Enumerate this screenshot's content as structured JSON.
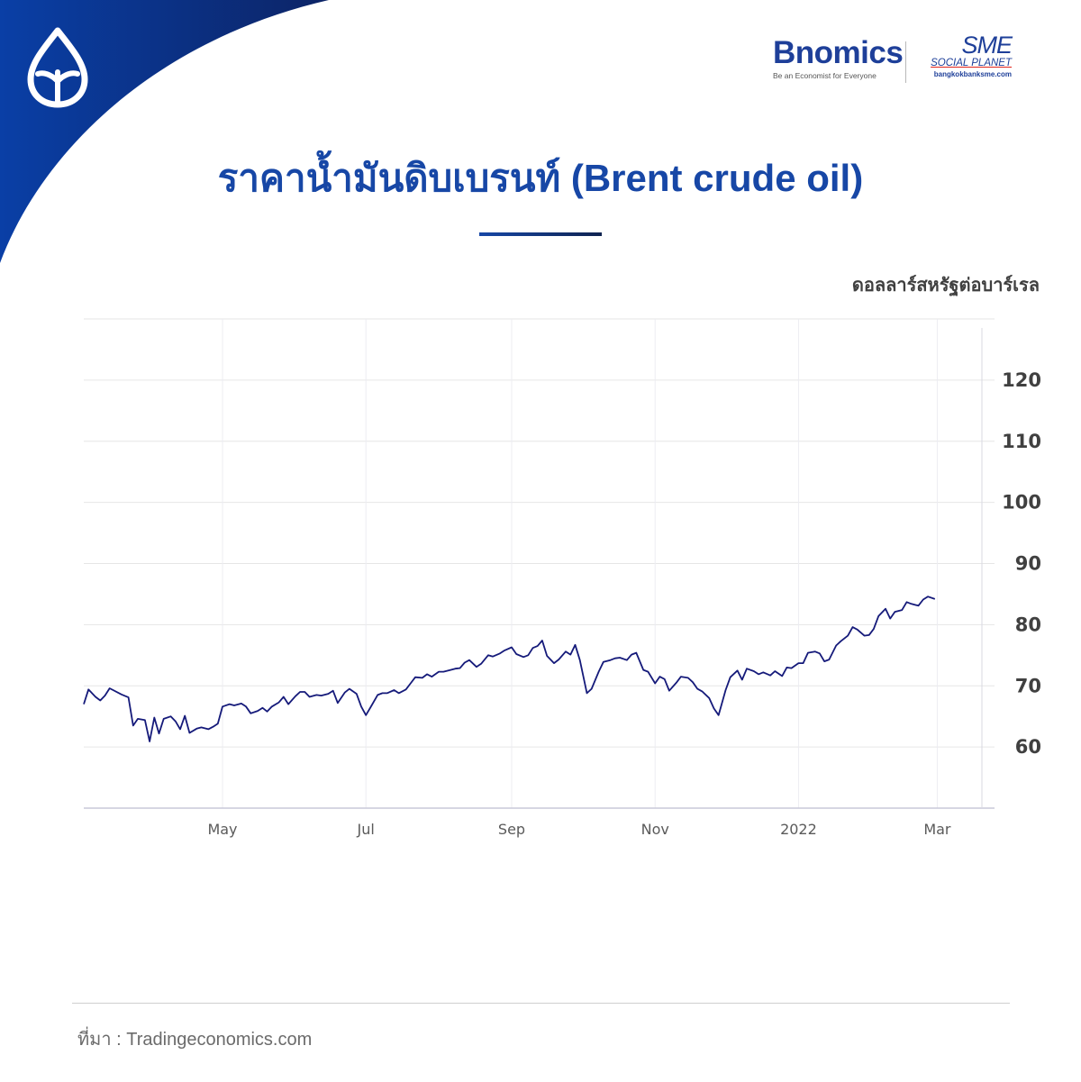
{
  "header": {
    "bnomics_logo": "Bnomics",
    "bnomics_tagline": "Be an Economist for Everyone",
    "sme_logo": "SME",
    "sme_subtitle": "SOCIAL PLANET",
    "sme_url": "bangkokbanksme.com"
  },
  "colors": {
    "brand_blue": "#1747a6",
    "line": "#151a7a",
    "corner_dark": "#0a2f7a"
  },
  "chart_data": {
    "type": "line",
    "title": "ราคาน้ำมันดิบเบรนท์ (Brent crude oil)",
    "ylabel": "ดอลลาร์สหรัฐต่อบาร์เรล",
    "xlabel": "",
    "ylim": [
      50,
      130
    ],
    "yticks": [
      60,
      70,
      80,
      90,
      100,
      110,
      120
    ],
    "xlim": [
      "2021-03-03",
      "2022-03-20"
    ],
    "xticks": [
      {
        "label": "May",
        "date": "2021-05-01"
      },
      {
        "label": "Jul",
        "date": "2021-07-01"
      },
      {
        "label": "Sep",
        "date": "2021-09-01"
      },
      {
        "label": "Nov",
        "date": "2021-11-01"
      },
      {
        "label": "2022",
        "date": "2022-01-01"
      },
      {
        "label": "Mar",
        "date": "2022-03-01"
      }
    ],
    "grid": true,
    "series": [
      {
        "points": [
          [
            "2021-03-03",
            67.0
          ],
          [
            "2021-03-05",
            69.4
          ],
          [
            "2021-03-08",
            68.2
          ],
          [
            "2021-03-10",
            67.6
          ],
          [
            "2021-03-12",
            68.4
          ],
          [
            "2021-03-14",
            69.6
          ],
          [
            "2021-03-19",
            68.6
          ],
          [
            "2021-03-22",
            68.1
          ],
          [
            "2021-03-24",
            63.5
          ],
          [
            "2021-03-26",
            64.6
          ],
          [
            "2021-03-29",
            64.4
          ],
          [
            "2021-03-31",
            60.9
          ],
          [
            "2021-04-02",
            64.8
          ],
          [
            "2021-04-04",
            62.2
          ],
          [
            "2021-04-06",
            64.6
          ],
          [
            "2021-04-09",
            65.0
          ],
          [
            "2021-04-11",
            64.2
          ],
          [
            "2021-04-13",
            62.9
          ],
          [
            "2021-04-15",
            65.1
          ],
          [
            "2021-04-17",
            62.3
          ],
          [
            "2021-04-20",
            63.0
          ],
          [
            "2021-04-22",
            63.2
          ],
          [
            "2021-04-25",
            62.9
          ],
          [
            "2021-04-27",
            63.3
          ],
          [
            "2021-04-29",
            63.8
          ],
          [
            "2021-05-01",
            66.6
          ],
          [
            "2021-05-04",
            67.0
          ],
          [
            "2021-05-06",
            66.8
          ],
          [
            "2021-05-09",
            67.1
          ],
          [
            "2021-05-11",
            66.6
          ],
          [
            "2021-05-13",
            65.5
          ],
          [
            "2021-05-16",
            65.9
          ],
          [
            "2021-05-18",
            66.4
          ],
          [
            "2021-05-20",
            65.8
          ],
          [
            "2021-05-22",
            66.6
          ],
          [
            "2021-05-25",
            67.3
          ],
          [
            "2021-05-27",
            68.2
          ],
          [
            "2021-05-29",
            67.0
          ],
          [
            "2021-06-01",
            68.3
          ],
          [
            "2021-06-03",
            69.0
          ],
          [
            "2021-06-05",
            69.0
          ],
          [
            "2021-06-07",
            68.2
          ],
          [
            "2021-06-10",
            68.5
          ],
          [
            "2021-06-12",
            68.4
          ],
          [
            "2021-06-15",
            68.7
          ],
          [
            "2021-06-17",
            69.2
          ],
          [
            "2021-06-19",
            67.2
          ],
          [
            "2021-06-22",
            68.9
          ],
          [
            "2021-06-24",
            69.5
          ],
          [
            "2021-06-27",
            68.7
          ],
          [
            "2021-06-29",
            66.6
          ],
          [
            "2021-07-01",
            65.2
          ],
          [
            "2021-07-03",
            66.5
          ],
          [
            "2021-07-06",
            68.5
          ],
          [
            "2021-07-08",
            68.8
          ],
          [
            "2021-07-10",
            68.8
          ],
          [
            "2021-07-13",
            69.3
          ],
          [
            "2021-07-15",
            68.8
          ],
          [
            "2021-07-18",
            69.4
          ],
          [
            "2021-07-20",
            70.4
          ],
          [
            "2021-07-22",
            71.4
          ],
          [
            "2021-07-25",
            71.3
          ],
          [
            "2021-07-27",
            71.9
          ],
          [
            "2021-07-29",
            71.5
          ],
          [
            "2021-08-01",
            72.3
          ],
          [
            "2021-08-03",
            72.3
          ],
          [
            "2021-08-06",
            72.6
          ],
          [
            "2021-08-08",
            72.8
          ],
          [
            "2021-08-10",
            72.9
          ],
          [
            "2021-08-12",
            73.8
          ],
          [
            "2021-08-14",
            74.2
          ],
          [
            "2021-08-17",
            73.1
          ],
          [
            "2021-08-19",
            73.6
          ],
          [
            "2021-08-22",
            75.0
          ],
          [
            "2021-08-24",
            74.8
          ],
          [
            "2021-08-27",
            75.3
          ],
          [
            "2021-08-29",
            75.8
          ],
          [
            "2021-09-01",
            76.3
          ],
          [
            "2021-09-03",
            75.2
          ],
          [
            "2021-09-06",
            74.7
          ],
          [
            "2021-09-08",
            75.0
          ],
          [
            "2021-09-10",
            76.2
          ],
          [
            "2021-09-12",
            76.5
          ],
          [
            "2021-09-14",
            77.4
          ],
          [
            "2021-09-16",
            74.9
          ],
          [
            "2021-09-19",
            73.7
          ],
          [
            "2021-09-21",
            74.3
          ],
          [
            "2021-09-24",
            75.6
          ],
          [
            "2021-09-26",
            75.1
          ],
          [
            "2021-09-28",
            76.7
          ],
          [
            "2021-09-30",
            74.2
          ],
          [
            "2021-10-03",
            68.8
          ],
          [
            "2021-10-05",
            69.5
          ],
          [
            "2021-10-08",
            72.3
          ],
          [
            "2021-10-10",
            73.9
          ],
          [
            "2021-10-13",
            74.2
          ],
          [
            "2021-10-15",
            74.5
          ],
          [
            "2021-10-17",
            74.6
          ],
          [
            "2021-10-20",
            74.2
          ],
          [
            "2021-10-22",
            75.1
          ],
          [
            "2021-10-24",
            75.4
          ],
          [
            "2021-10-27",
            72.6
          ],
          [
            "2021-10-29",
            72.3
          ],
          [
            "2021-11-01",
            70.4
          ],
          [
            "2021-11-03",
            71.5
          ],
          [
            "2021-11-05",
            71.1
          ],
          [
            "2021-11-07",
            69.2
          ],
          [
            "2021-11-10",
            70.5
          ],
          [
            "2021-11-12",
            71.5
          ],
          [
            "2021-11-15",
            71.3
          ],
          [
            "2021-11-17",
            70.6
          ],
          [
            "2021-11-19",
            69.5
          ],
          [
            "2021-11-21",
            69.1
          ],
          [
            "2021-11-24",
            68.0
          ],
          [
            "2021-11-26",
            66.3
          ],
          [
            "2021-11-28",
            65.2
          ],
          [
            "2021-12-01",
            69.3
          ],
          [
            "2021-12-03",
            71.4
          ],
          [
            "2021-12-06",
            72.5
          ],
          [
            "2021-12-08",
            71.0
          ],
          [
            "2021-12-10",
            72.8
          ],
          [
            "2021-12-13",
            72.4
          ],
          [
            "2021-12-15",
            71.9
          ],
          [
            "2021-12-17",
            72.2
          ],
          [
            "2021-12-20",
            71.7
          ],
          [
            "2021-12-22",
            72.4
          ],
          [
            "2021-12-25",
            71.6
          ],
          [
            "2021-12-27",
            73.0
          ],
          [
            "2021-12-29",
            72.9
          ],
          [
            "2022-01-01",
            73.7
          ],
          [
            "2022-01-03",
            73.7
          ],
          [
            "2022-01-05",
            75.4
          ],
          [
            "2022-01-08",
            75.6
          ],
          [
            "2022-01-10",
            75.3
          ],
          [
            "2022-01-12",
            74.0
          ],
          [
            "2022-01-14",
            74.3
          ],
          [
            "2022-01-17",
            76.6
          ],
          [
            "2022-01-19",
            77.3
          ],
          [
            "2022-01-22",
            78.2
          ],
          [
            "2022-01-24",
            79.6
          ],
          [
            "2022-01-26",
            79.2
          ],
          [
            "2022-01-29",
            78.2
          ],
          [
            "2022-01-31",
            78.3
          ],
          [
            "2022-02-02",
            79.3
          ],
          [
            "2022-02-04",
            81.4
          ],
          [
            "2022-02-07",
            82.6
          ],
          [
            "2022-02-09",
            81.0
          ],
          [
            "2022-02-11",
            82.1
          ],
          [
            "2022-02-14",
            82.4
          ],
          [
            "2022-02-16",
            83.7
          ],
          [
            "2022-02-18",
            83.4
          ],
          [
            "2022-02-21",
            83.1
          ],
          [
            "2022-02-23",
            84.1
          ],
          [
            "2022-02-25",
            84.6
          ],
          [
            "2022-02-28",
            84.2
          ]
        ]
      }
    ]
  },
  "footer": {
    "source": "ที่มา : Tradingeconomics.com"
  }
}
